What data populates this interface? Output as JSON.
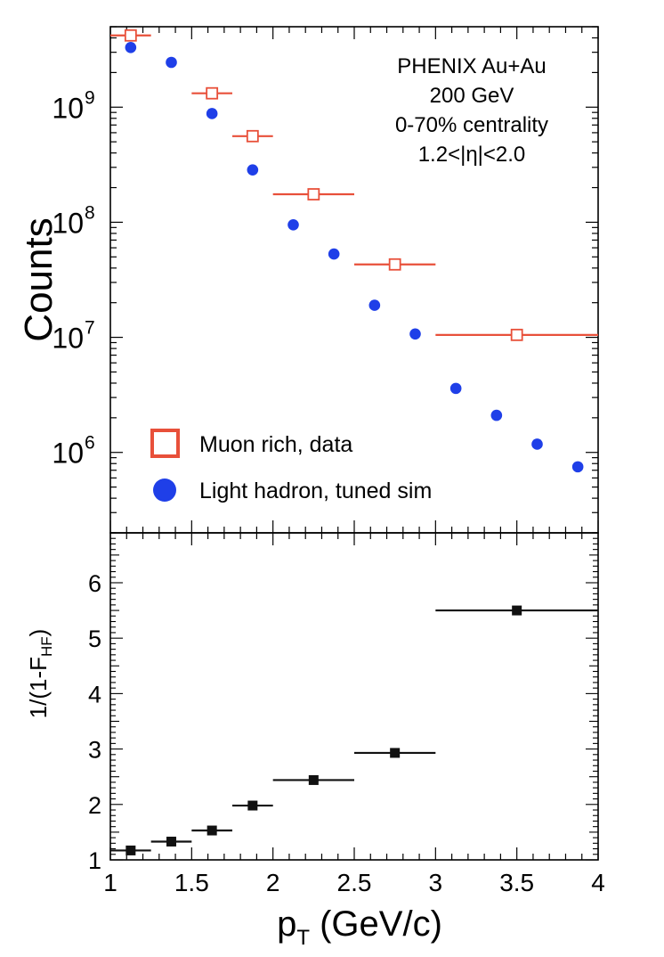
{
  "chart_data": [
    {
      "type": "scatter",
      "panel": "top",
      "ylabel": "Counts",
      "xlabel": "",
      "xlim": [
        1,
        4
      ],
      "ylim": [
        200000,
        5000000000
      ],
      "yscale": "log",
      "grid": false,
      "legend_position": "bottom-left",
      "annotation": [
        "PHENIX Au+Au",
        "200 GeV",
        "0-70% centrality",
        "1.2<|η|<2.0"
      ],
      "ytick_labels": [
        {
          "value": 1000000,
          "base": "10",
          "exp": "6"
        },
        {
          "value": 10000000,
          "base": "10",
          "exp": "7"
        },
        {
          "value": 100000000,
          "base": "10",
          "exp": "8"
        },
        {
          "value": 1000000000,
          "base": "10",
          "exp": "9"
        }
      ],
      "series": [
        {
          "name": "Muon rich, data",
          "marker": "open-square",
          "color": "#e8503a",
          "points": [
            {
              "x": 1.125,
              "xlo": 1.0,
              "xhi": 1.25,
              "y": 4200000000
            },
            {
              "x": 1.625,
              "xlo": 1.5,
              "xhi": 1.75,
              "y": 1320000000
            },
            {
              "x": 1.875,
              "xlo": 1.75,
              "xhi": 2.0,
              "y": 560000000
            },
            {
              "x": 2.25,
              "xlo": 2.0,
              "xhi": 2.5,
              "y": 175000000
            },
            {
              "x": 2.75,
              "xlo": 2.5,
              "xhi": 3.0,
              "y": 43000000
            },
            {
              "x": 3.5,
              "xlo": 3.0,
              "xhi": 4.0,
              "y": 10500000
            }
          ]
        },
        {
          "name": "Light hadron, tuned sim",
          "marker": "filled-circle",
          "color": "#1f3fe8",
          "points": [
            {
              "x": 1.125,
              "y": 3300000000
            },
            {
              "x": 1.375,
              "y": 2450000000
            },
            {
              "x": 1.625,
              "y": 880000000
            },
            {
              "x": 1.875,
              "y": 285000000
            },
            {
              "x": 2.125,
              "y": 95000000
            },
            {
              "x": 2.375,
              "y": 53000000
            },
            {
              "x": 2.625,
              "y": 19000000
            },
            {
              "x": 2.875,
              "y": 10700000
            },
            {
              "x": 3.125,
              "y": 3600000
            },
            {
              "x": 3.375,
              "y": 2100000
            },
            {
              "x": 3.625,
              "y": 1180000
            },
            {
              "x": 3.875,
              "y": 750000
            }
          ]
        }
      ]
    },
    {
      "type": "scatter",
      "panel": "bottom",
      "ylabel": {
        "base": "1/(1-F",
        "sub": "HF",
        "tail": ")"
      },
      "xlabel": {
        "base": "p",
        "sub": "T",
        "tail": " (GeV/c)"
      },
      "xlim": [
        1,
        4
      ],
      "ylim": [
        1,
        6.9
      ],
      "grid": false,
      "xtick_labels": [
        "1",
        "1.5",
        "2",
        "2.5",
        "3",
        "3.5",
        "4"
      ],
      "ytick_labels": [
        "1",
        "2",
        "3",
        "4",
        "5",
        "6"
      ],
      "series": [
        {
          "marker": "filled-square",
          "color": "#111111",
          "points": [
            {
              "x": 1.125,
              "xlo": 1.0,
              "xhi": 1.25,
              "y": 1.17
            },
            {
              "x": 1.375,
              "xlo": 1.25,
              "xhi": 1.5,
              "y": 1.33
            },
            {
              "x": 1.625,
              "xlo": 1.5,
              "xhi": 1.75,
              "y": 1.53
            },
            {
              "x": 1.875,
              "xlo": 1.75,
              "xhi": 2.0,
              "y": 1.98
            },
            {
              "x": 2.25,
              "xlo": 2.0,
              "xhi": 2.5,
              "y": 2.44
            },
            {
              "x": 2.75,
              "xlo": 2.5,
              "xhi": 3.0,
              "y": 2.93
            },
            {
              "x": 3.5,
              "xlo": 3.0,
              "xhi": 4.0,
              "y": 5.5,
              "ylo": 5.42,
              "yhi": 5.58
            }
          ]
        }
      ]
    }
  ]
}
